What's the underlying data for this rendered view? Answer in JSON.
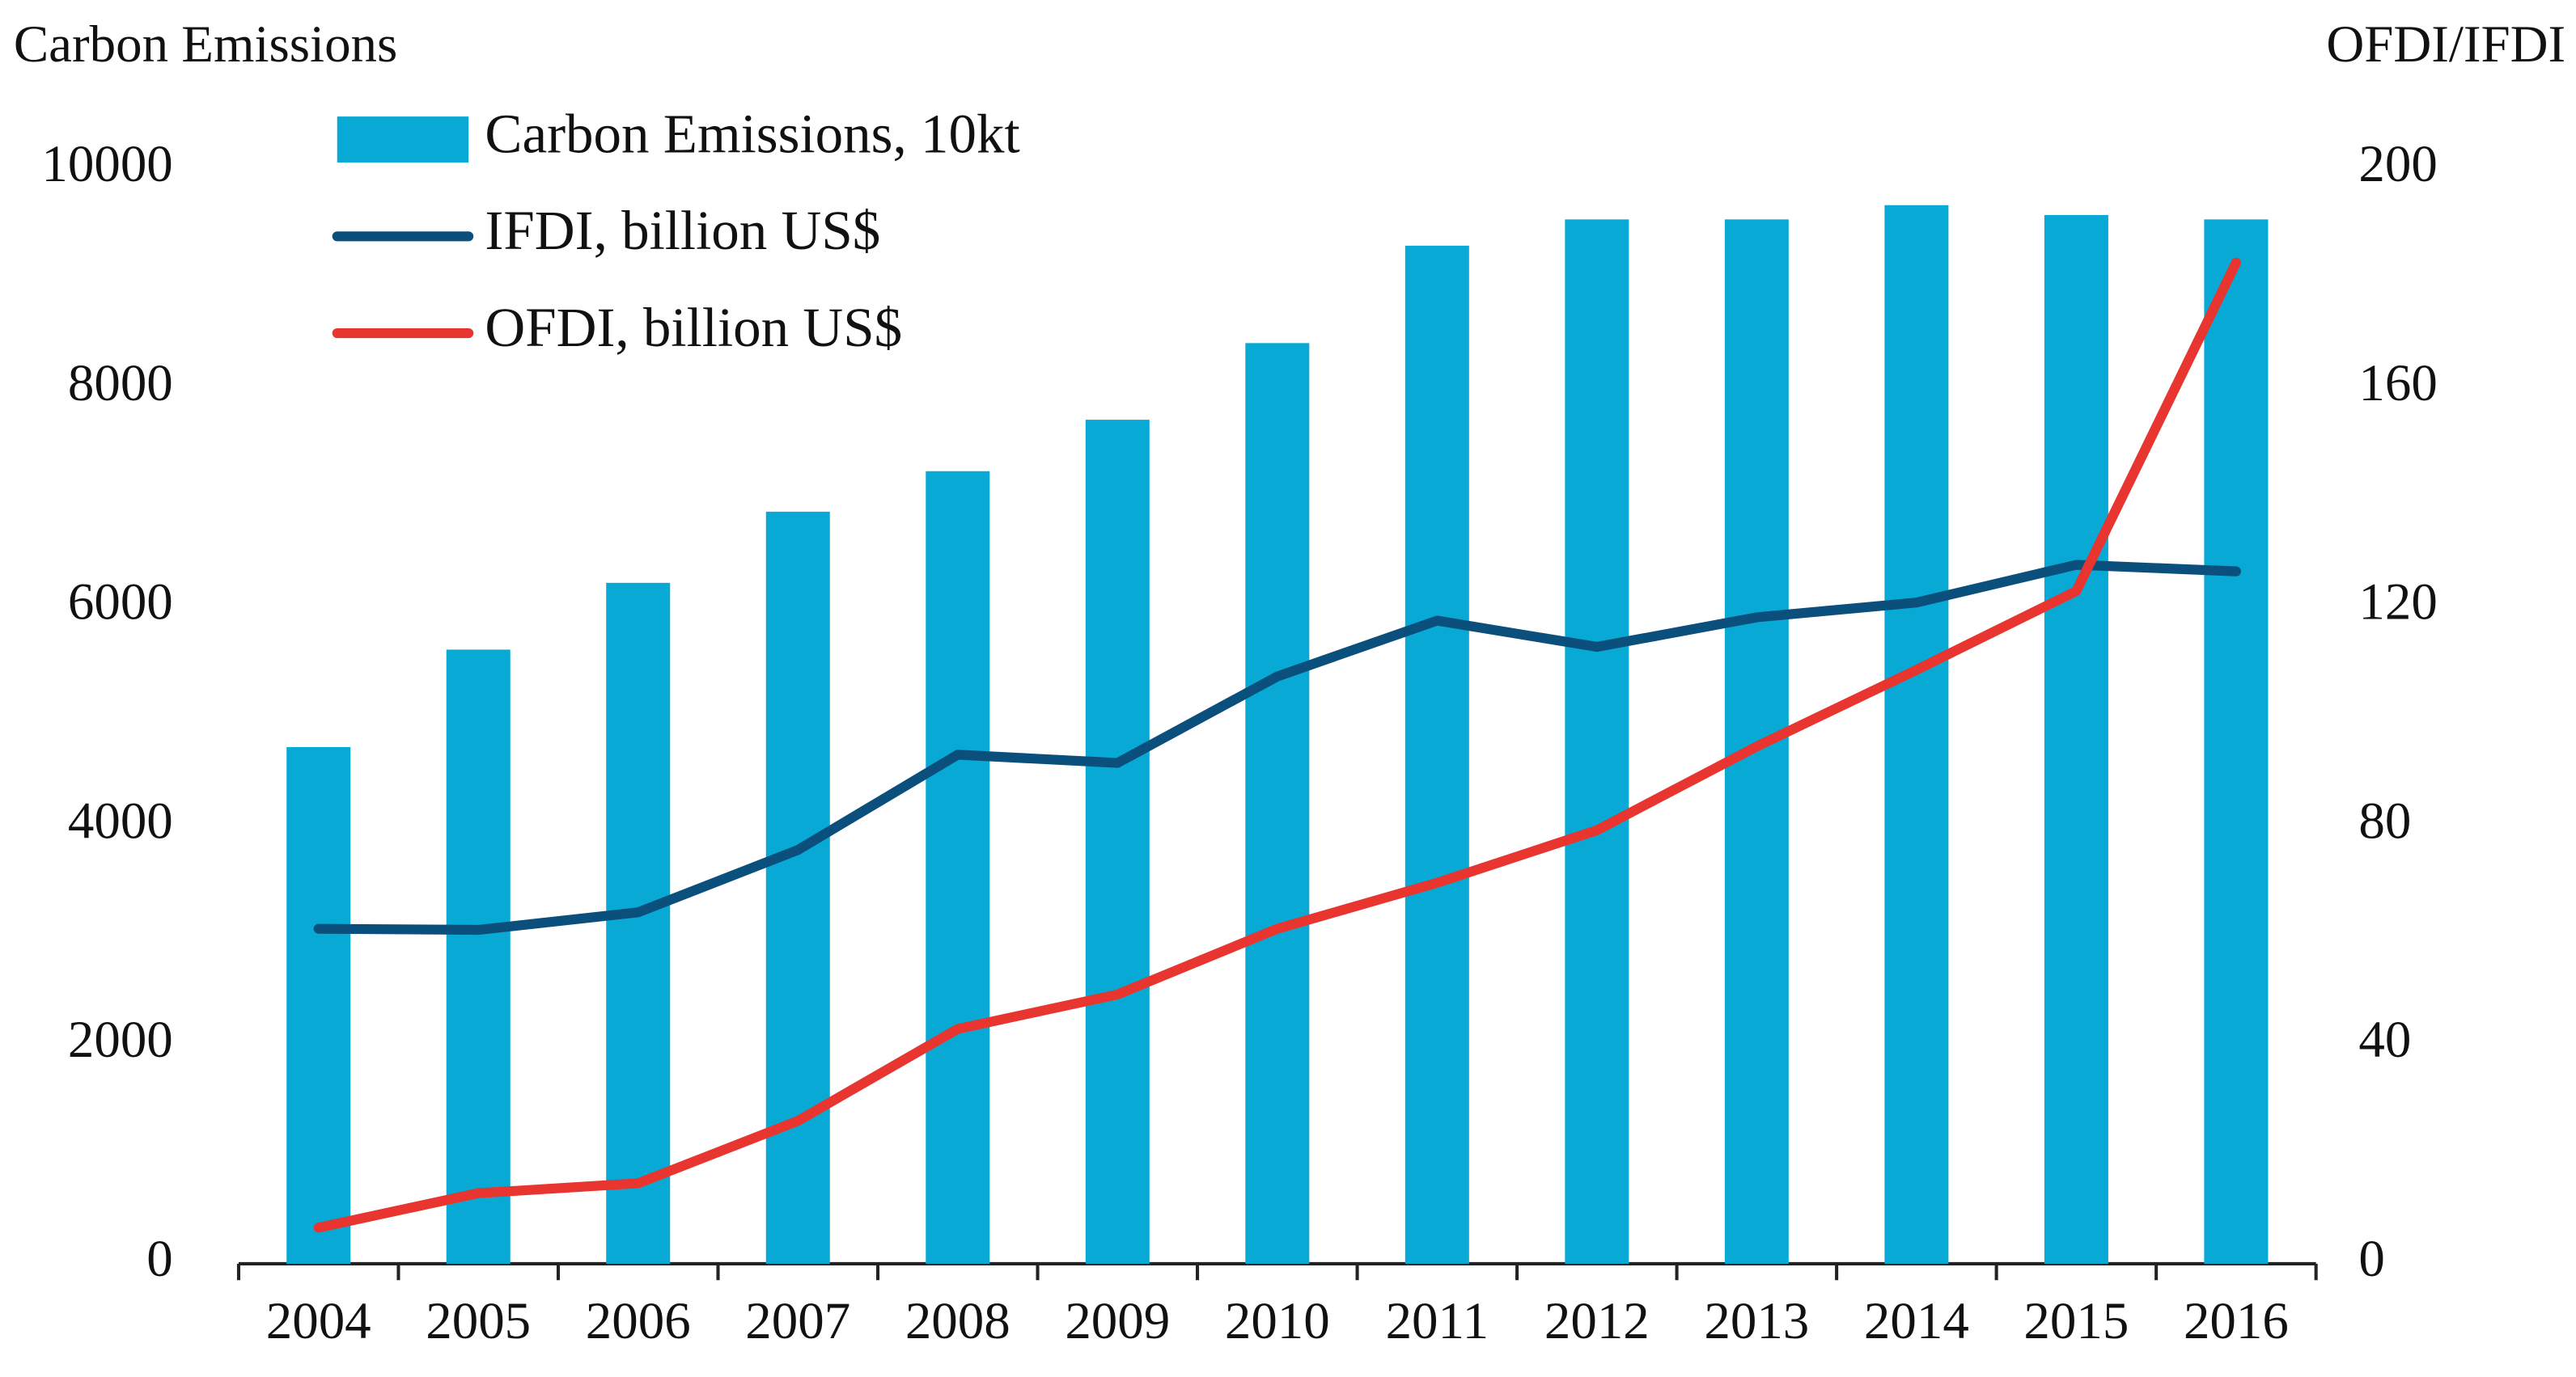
{
  "chart_data": {
    "type": "bar",
    "y_label": "Carbon Emissions",
    "y2_label": "OFDI/IFDI",
    "categories": [
      "2004",
      "2005",
      "2006",
      "2007",
      "2008",
      "2009",
      "2010",
      "2011",
      "2012",
      "2013",
      "2014",
      "2015",
      "2016"
    ],
    "series": [
      {
        "name": "Carbon Emissions, 10kt",
        "type": "bar",
        "color": "#08a9d4",
        "axis": "y",
        "values": [
          4720,
          5610,
          6220,
          6870,
          7240,
          7710,
          8410,
          9300,
          9540,
          9540,
          9670,
          9580,
          9540
        ]
      },
      {
        "name": "IFDI, billion US$",
        "type": "line",
        "color": "#0b4f7c",
        "axis": "y2",
        "values": [
          61.2,
          61,
          64.2,
          75.6,
          93,
          91.5,
          107.3,
          117.5,
          112.7,
          118.1,
          120.8,
          127.7,
          126.5
        ]
      },
      {
        "name": "OFDI, billion US$",
        "type": "line",
        "color": "#e8352f",
        "axis": "y2",
        "values": [
          6.6,
          12.9,
          14.7,
          26.1,
          42.9,
          49.2,
          61.2,
          69.6,
          79.2,
          94.5,
          108.5,
          122.9,
          182.9
        ]
      }
    ],
    "ylim": [
      0,
      10000
    ],
    "yticks": [
      0,
      2000,
      4000,
      6000,
      8000,
      10000
    ],
    "y2lim": [
      0,
      200
    ],
    "y2ticks": [
      0,
      40,
      80,
      120,
      160,
      200
    ],
    "grid": false,
    "legend": "top-left"
  }
}
